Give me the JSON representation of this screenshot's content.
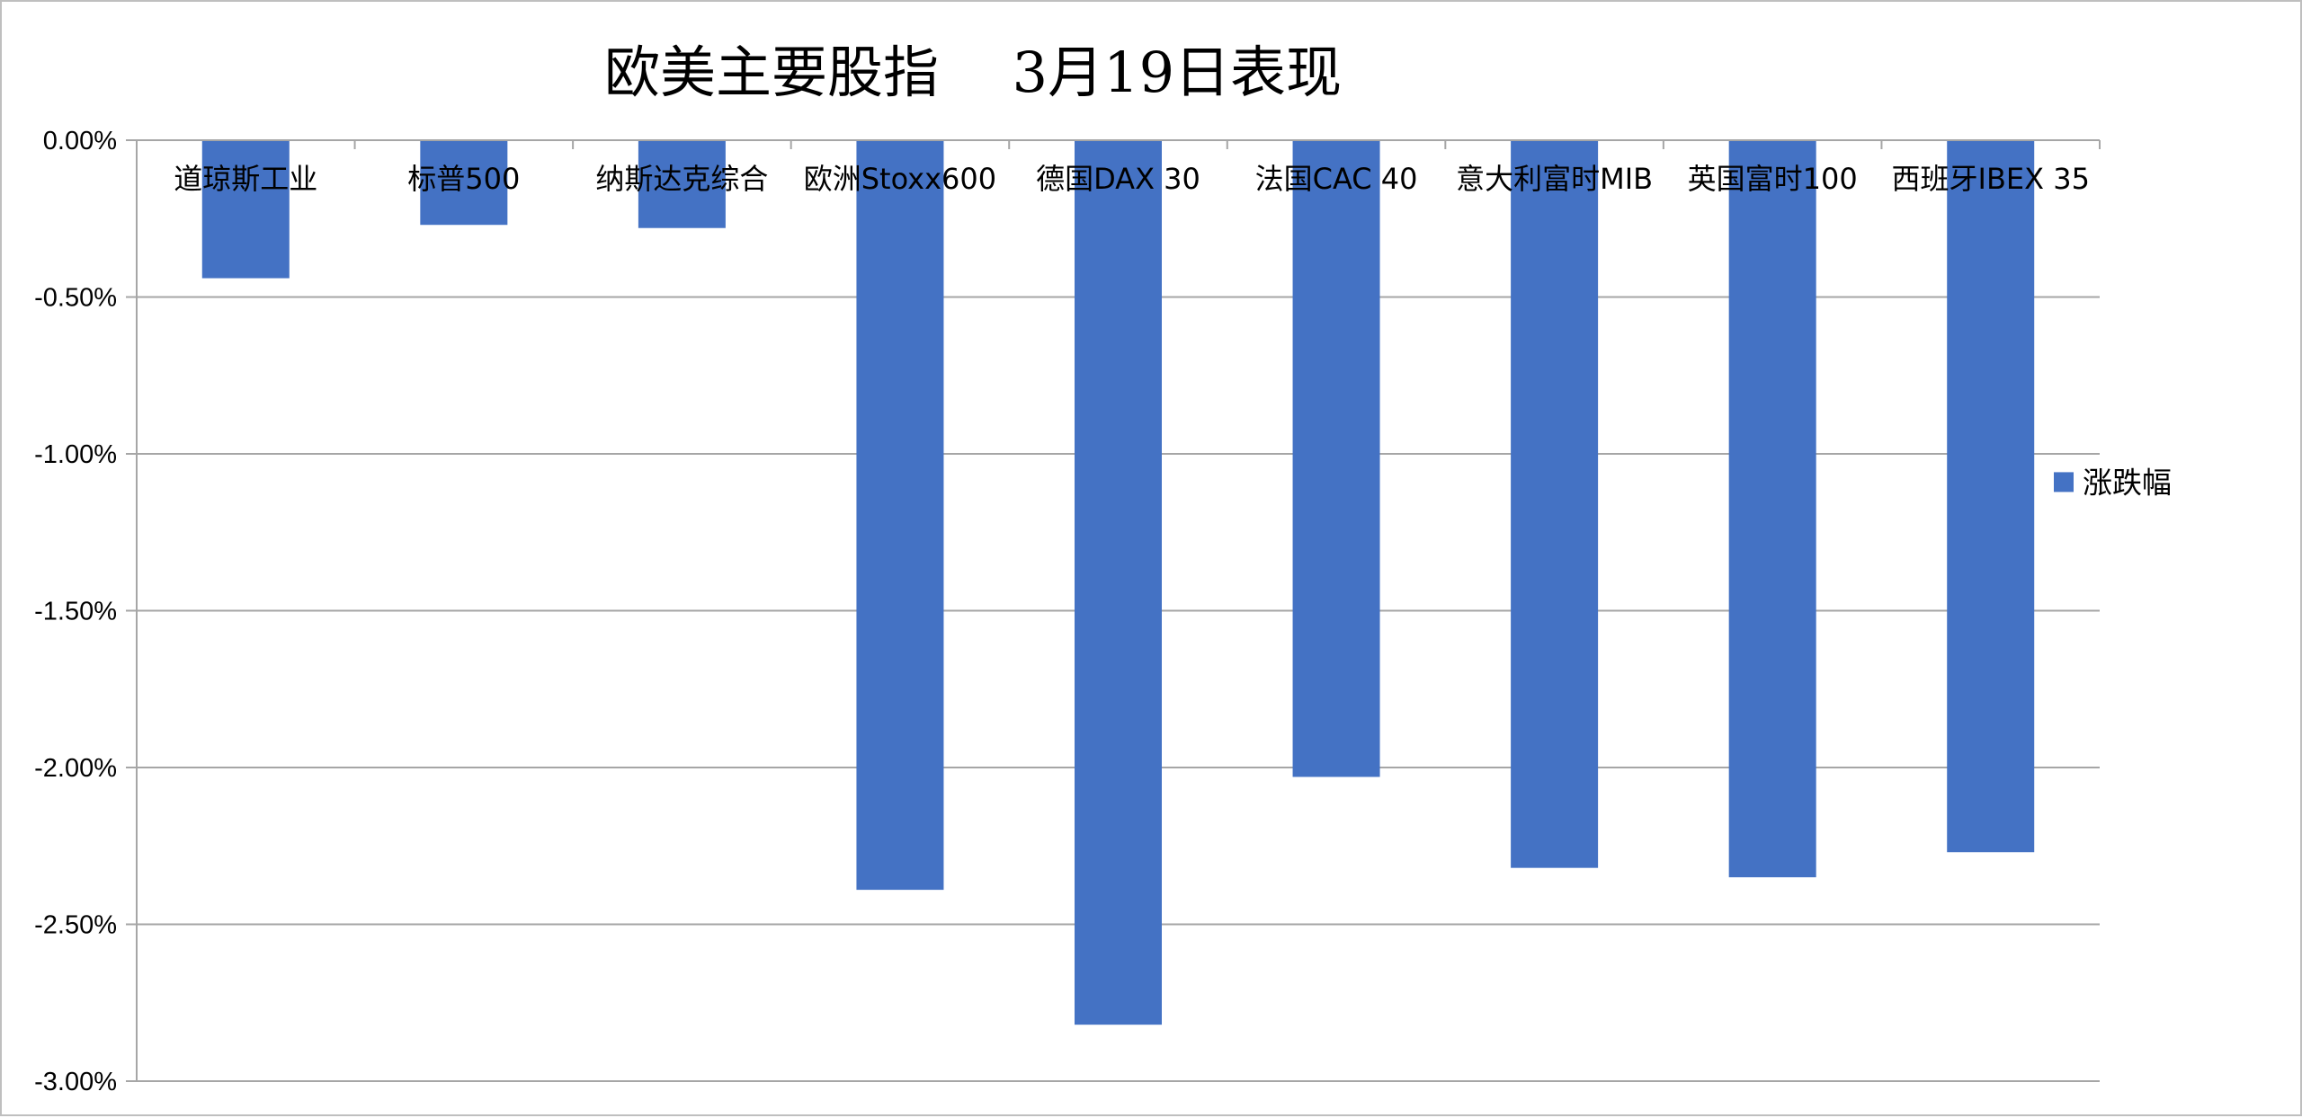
{
  "chart_data": {
    "type": "bar",
    "title": "欧美主要股指　 3月19日表现",
    "categories": [
      "道琼斯工业",
      "标普500",
      "纳斯达克综合",
      "欧洲Stoxx600",
      "德国DAX 30",
      "法国CAC 40",
      "意大利富时MIB",
      "英国富时100",
      "西班牙IBEX 35"
    ],
    "series": [
      {
        "name": "涨跌幅",
        "values": [
          -0.44,
          -0.27,
          -0.28,
          -2.39,
          -2.82,
          -2.03,
          -2.32,
          -2.35,
          -2.27
        ],
        "color": "#4472c4"
      }
    ],
    "ylim": [
      -3.0,
      0.0
    ],
    "yticks": [
      0.0,
      -0.5,
      -1.0,
      -1.5,
      -2.0,
      -2.5,
      -3.0
    ],
    "ytick_labels": [
      "0.00%",
      "-0.50%",
      "-1.00%",
      "-1.50%",
      "-2.00%",
      "-2.50%",
      "-3.00%"
    ],
    "y_unit": "%",
    "grid": true,
    "grid_color": "#a6a6a6",
    "axis_color": "#a6a6a6",
    "legend_position": "right"
  }
}
